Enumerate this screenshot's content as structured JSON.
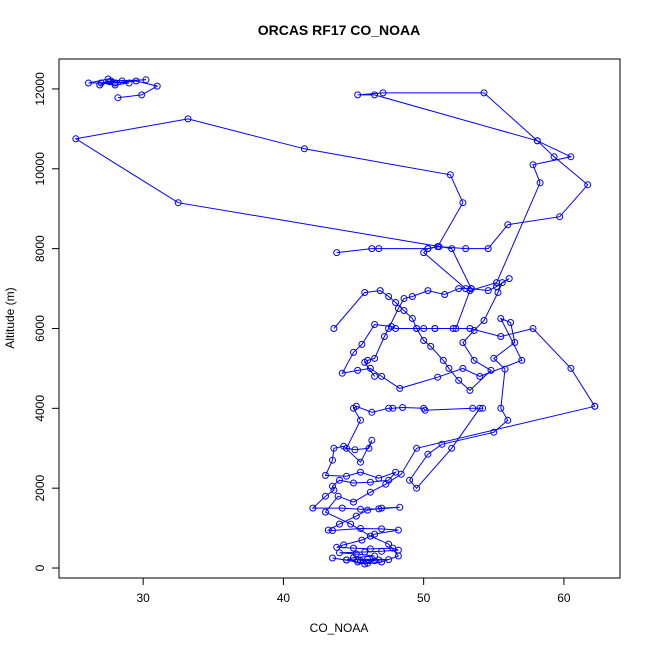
{
  "chart_data": {
    "type": "line",
    "title": "ORCAS RF17 CO_NOAA",
    "xlabel": "CO_NOAA",
    "ylabel": "Altitude (m)",
    "xlim": [
      24,
      64
    ],
    "ylim": [
      -250,
      12750
    ],
    "xticks": [
      30,
      40,
      50,
      60
    ],
    "yticks": [
      0,
      2000,
      4000,
      6000,
      8000,
      10000,
      12000
    ],
    "series_color": "#0000ff",
    "marker": "open-circle",
    "series": [
      {
        "points": [
          [
            45.5,
            180
          ],
          [
            46.8,
            200
          ],
          [
            47.5,
            210
          ],
          [
            46.0,
            220
          ],
          [
            44.5,
            200
          ],
          [
            45.0,
            260
          ],
          [
            46.5,
            300
          ],
          [
            45.2,
            350
          ],
          [
            44.0,
            380
          ],
          [
            45.8,
            400
          ],
          [
            47.0,
            420
          ],
          [
            48.2,
            450
          ],
          [
            47.8,
            500
          ],
          [
            46.2,
            480
          ],
          [
            45.0,
            500
          ],
          [
            43.8,
            520
          ],
          [
            44.3,
            580
          ],
          [
            45.6,
            700
          ],
          [
            46.5,
            850
          ],
          [
            48.2,
            950
          ],
          [
            47.0,
            980
          ],
          [
            45.5,
            990
          ],
          [
            43.5,
            940
          ],
          [
            43.2,
            950
          ],
          [
            44.0,
            1100
          ],
          [
            45.2,
            1300
          ],
          [
            46.0,
            1450
          ],
          [
            47.0,
            1500
          ],
          [
            48.3,
            1520
          ],
          [
            46.8,
            1480
          ],
          [
            45.5,
            1470
          ],
          [
            44.2,
            1500
          ],
          [
            42.1,
            1500
          ],
          [
            43.0,
            1800
          ],
          [
            43.6,
            1950
          ],
          [
            43.5,
            2050
          ],
          [
            44.0,
            2200
          ],
          [
            45.0,
            2130
          ],
          [
            46.2,
            2150
          ],
          [
            47.5,
            2200
          ],
          [
            48.0,
            2400
          ],
          [
            46.8,
            2250
          ],
          [
            45.5,
            2400
          ],
          [
            44.5,
            2300
          ],
          [
            43.0,
            2320
          ],
          [
            43.5,
            2700
          ],
          [
            43.6,
            3000
          ],
          [
            44.3,
            3050
          ],
          [
            45.5,
            2650
          ],
          [
            46.3,
            3200
          ],
          [
            46.1,
            3000
          ],
          [
            45.1,
            2960
          ],
          [
            44.5,
            3000
          ],
          [
            45.5,
            3700
          ],
          [
            45.0,
            4000
          ],
          [
            45.2,
            4050
          ],
          [
            46.3,
            3900
          ],
          [
            47.5,
            4000
          ],
          [
            47.8,
            4000
          ],
          [
            48.5,
            4020
          ],
          [
            50.0,
            4000
          ],
          [
            50.1,
            3950
          ],
          [
            53.5,
            4000
          ],
          [
            54.2,
            4000
          ],
          [
            54.0,
            4000
          ],
          [
            52.0,
            3000
          ],
          [
            49.5,
            2000
          ],
          [
            49.0,
            2200
          ],
          [
            50.3,
            2850
          ],
          [
            51.3,
            3100
          ],
          [
            55.0,
            3400
          ],
          [
            56.0,
            3700
          ],
          [
            55.5,
            4000
          ],
          [
            55.8,
            4980
          ],
          [
            55.0,
            5250
          ],
          [
            56.5,
            5650
          ],
          [
            56.2,
            6150
          ],
          [
            55.5,
            6250
          ],
          [
            57.0,
            5200
          ],
          [
            54.0,
            4800
          ],
          [
            52.8,
            5000
          ],
          [
            51.0,
            4780
          ],
          [
            48.3,
            4500
          ],
          [
            47.0,
            4800
          ],
          [
            46.2,
            5000
          ],
          [
            45.3,
            4950
          ],
          [
            44.2,
            4880
          ],
          [
            45.0,
            5400
          ],
          [
            45.6,
            5600
          ],
          [
            46.5,
            6100
          ],
          [
            47.7,
            6050
          ],
          [
            48.0,
            6000
          ],
          [
            49.5,
            6000
          ],
          [
            50.8,
            6000
          ],
          [
            52.1,
            6000
          ],
          [
            53.3,
            6000
          ],
          [
            55.5,
            5800
          ],
          [
            57.8,
            6000
          ],
          [
            60.5,
            5000
          ],
          [
            62.2,
            4050
          ]
        ]
      },
      {
        "points": [
          [
            62.2,
            4050
          ],
          [
            49.5,
            3000
          ],
          [
            48.4,
            2350
          ],
          [
            47.3,
            2100
          ],
          [
            46.2,
            1900
          ],
          [
            45.0,
            1650
          ],
          [
            43.9,
            1800
          ],
          [
            43.0,
            1400
          ],
          [
            44.8,
            1100
          ],
          [
            46.2,
            800
          ],
          [
            47.5,
            600
          ],
          [
            48.2,
            300
          ],
          [
            47.0,
            150
          ],
          [
            45.8,
            100
          ],
          [
            44.5,
            200
          ],
          [
            43.5,
            250
          ],
          [
            45.3,
            150
          ],
          [
            46.0,
            120
          ],
          [
            46.5,
            180
          ],
          [
            45.3,
            200
          ]
        ]
      },
      {
        "points": [
          [
            43.6,
            6000
          ],
          [
            45.8,
            6900
          ],
          [
            46.9,
            6950
          ],
          [
            47.5,
            6800
          ],
          [
            48.0,
            6650
          ],
          [
            48.6,
            6450
          ],
          [
            49.2,
            6250
          ],
          [
            49.5,
            6000
          ],
          [
            50.0,
            5700
          ],
          [
            50.5,
            5550
          ],
          [
            51.4,
            5200
          ],
          [
            51.8,
            5000
          ],
          [
            52.5,
            4700
          ],
          [
            53.3,
            4450
          ],
          [
            54.8,
            4950
          ],
          [
            53.6,
            5200
          ],
          [
            52.8,
            5650
          ],
          [
            53.6,
            5950
          ],
          [
            54.3,
            6200
          ],
          [
            55.3,
            6900
          ],
          [
            55.6,
            7150
          ],
          [
            56.1,
            7250
          ],
          [
            55.2,
            7050
          ],
          [
            54.6,
            6950
          ],
          [
            53.4,
            7000
          ],
          [
            52.5,
            7000
          ],
          [
            51.5,
            6850
          ],
          [
            50.3,
            6950
          ],
          [
            49.2,
            6800
          ],
          [
            48.6,
            6750
          ],
          [
            48.2,
            6500
          ],
          [
            47.5,
            6000
          ],
          [
            47.2,
            5800
          ],
          [
            46.5,
            5250
          ],
          [
            46.0,
            5200
          ],
          [
            45.8,
            5150
          ],
          [
            46.5,
            4800
          ]
        ]
      },
      {
        "points": [
          [
            43.8,
            7900
          ],
          [
            46.3,
            8000
          ],
          [
            46.8,
            8000
          ],
          [
            50.3,
            8000
          ],
          [
            51.1,
            8050
          ],
          [
            53.0,
            8000
          ],
          [
            54.6,
            8000
          ],
          [
            56.0,
            8600
          ],
          [
            59.7,
            8800
          ],
          [
            61.7,
            9600
          ],
          [
            59.3,
            10300
          ],
          [
            58.1,
            10700
          ],
          [
            54.3,
            11900
          ],
          [
            47.1,
            11900
          ],
          [
            45.3,
            11850
          ],
          [
            46.5,
            11850
          ],
          [
            58.1,
            10700
          ],
          [
            60.5,
            10300
          ],
          [
            57.8,
            10100
          ],
          [
            58.3,
            9650
          ],
          [
            55.2,
            7150
          ],
          [
            53.3,
            6950
          ],
          [
            52.3,
            6000
          ],
          [
            50.8,
            6000
          ],
          [
            50.0,
            6000
          ]
        ]
      },
      {
        "points": [
          [
            53.4,
            7000
          ],
          [
            52.0,
            8000
          ],
          [
            32.5,
            9150
          ],
          [
            25.2,
            10750
          ],
          [
            33.2,
            11250
          ],
          [
            41.5,
            10500
          ],
          [
            51.9,
            9850
          ],
          [
            52.8,
            9150
          ],
          [
            51.0,
            8050
          ],
          [
            50.3,
            8000
          ],
          [
            50.0,
            7900
          ],
          [
            53.0,
            7000
          ]
        ]
      },
      {
        "points": [
          [
            28.2,
            11780
          ],
          [
            29.9,
            11850
          ],
          [
            31.0,
            12070
          ],
          [
            29.5,
            12200
          ],
          [
            28.0,
            12150
          ],
          [
            26.1,
            12150
          ],
          [
            27.5,
            12250
          ],
          [
            28.5,
            12200
          ],
          [
            30.2,
            12230
          ],
          [
            27.7,
            12200
          ],
          [
            27.0,
            12150
          ],
          [
            28.0,
            12100
          ],
          [
            29.0,
            12150
          ],
          [
            27.6,
            12180
          ],
          [
            26.9,
            12100
          ]
        ]
      }
    ]
  }
}
